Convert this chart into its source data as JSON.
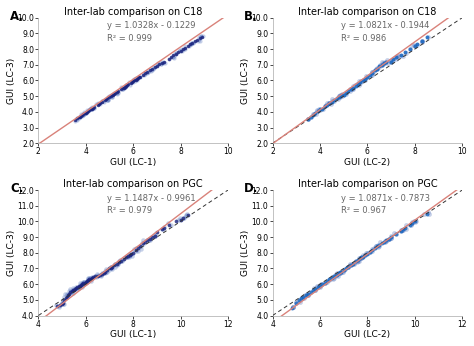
{
  "panels": [
    {
      "label": "A.",
      "title": "Inter-lab comparison on C18",
      "xlabel": "GUI (LC-1)",
      "ylabel": "GUI (LC-3)",
      "xlim": [
        2.0,
        10.0
      ],
      "ylim": [
        2.0,
        10.0
      ],
      "xticks": [
        2,
        4,
        6,
        8,
        10
      ],
      "ytick_vals": [
        2.0,
        3.0,
        4.0,
        5.0,
        6.0,
        7.0,
        8.0,
        9.0,
        10.0
      ],
      "ytick_labels": [
        "2.0",
        "3.0",
        "4.0",
        "5.0",
        "6.0",
        "7.0",
        "8.0",
        "9.0",
        "10.0"
      ],
      "equation": "y = 1.0328x - 0.1229",
      "r2": "R² = 0.999",
      "fit_slope": 1.0328,
      "fit_intercept": -0.1229,
      "line_color": "#d9827a",
      "show_diag": false,
      "scatter_x": [
        3.55,
        3.65,
        3.7,
        3.75,
        3.8,
        3.85,
        3.9,
        3.95,
        4.0,
        4.05,
        4.1,
        4.15,
        4.2,
        4.25,
        4.3,
        4.35,
        4.5,
        4.55,
        4.6,
        4.7,
        4.8,
        4.85,
        4.9,
        5.0,
        5.05,
        5.1,
        5.15,
        5.2,
        5.25,
        5.3,
        5.35,
        5.5,
        5.55,
        5.6,
        5.65,
        5.7,
        5.75,
        5.8,
        5.9,
        5.95,
        6.0,
        6.05,
        6.1,
        6.15,
        6.2,
        6.25,
        6.3,
        6.4,
        6.5,
        6.6,
        6.7,
        6.8,
        6.9,
        7.0,
        7.1,
        7.2,
        7.3,
        7.5,
        7.6,
        7.7,
        7.8,
        7.9,
        8.0,
        8.1,
        8.2,
        8.3,
        8.4,
        8.5,
        8.6,
        8.7,
        8.8,
        8.9
      ],
      "scatter_y": [
        3.5,
        3.6,
        3.65,
        3.7,
        3.75,
        3.8,
        3.85,
        3.9,
        3.95,
        4.0,
        4.05,
        4.1,
        4.15,
        4.2,
        4.25,
        4.3,
        4.45,
        4.5,
        4.55,
        4.65,
        4.75,
        4.8,
        4.85,
        4.95,
        5.0,
        5.05,
        5.1,
        5.15,
        5.2,
        5.25,
        5.3,
        5.45,
        5.5,
        5.55,
        5.6,
        5.65,
        5.7,
        5.75,
        5.85,
        5.9,
        5.95,
        6.0,
        6.05,
        6.1,
        6.15,
        6.2,
        6.25,
        6.35,
        6.45,
        6.55,
        6.65,
        6.75,
        6.85,
        6.95,
        7.05,
        7.1,
        7.2,
        7.4,
        7.5,
        7.6,
        7.7,
        7.8,
        7.9,
        8.0,
        8.1,
        8.2,
        8.3,
        8.4,
        8.5,
        8.6,
        8.7,
        8.8
      ],
      "dot_color": "#1a237e",
      "dot_alpha": 0.85,
      "dot_size": 6
    },
    {
      "label": "B.",
      "title": "Inter-lab comparison on C18",
      "xlabel": "GUI (LC-2)",
      "ylabel": "GUI (LC-3)",
      "xlim": [
        2.0,
        10.0
      ],
      "ylim": [
        2.0,
        10.0
      ],
      "xticks": [
        2,
        4,
        6,
        8,
        10
      ],
      "ytick_vals": [
        2.0,
        3.0,
        4.0,
        5.0,
        6.0,
        7.0,
        8.0,
        9.0,
        10.0
      ],
      "ytick_labels": [
        "2.0",
        "3.0",
        "4.0",
        "5.0",
        "6.0",
        "7.0",
        "8.0",
        "9.0",
        "10.0"
      ],
      "equation": "y = 1.0821x - 0.1944",
      "r2": "R² = 0.986",
      "fit_slope": 1.0821,
      "fit_intercept": -0.1944,
      "line_color": "#d9827a",
      "show_diag": true,
      "scatter_x": [
        3.5,
        3.6,
        3.7,
        3.8,
        3.9,
        4.0,
        4.1,
        4.2,
        4.3,
        4.4,
        4.5,
        4.6,
        4.7,
        4.8,
        4.9,
        5.0,
        5.1,
        5.2,
        5.3,
        5.4,
        5.5,
        5.6,
        5.7,
        5.8,
        5.9,
        6.0,
        6.1,
        6.2,
        6.3,
        6.4,
        6.5,
        6.6,
        6.7,
        6.8,
        7.0,
        7.1,
        7.2,
        7.4,
        7.6,
        7.8,
        8.0,
        8.1,
        8.3,
        8.5
      ],
      "scatter_y": [
        3.55,
        3.65,
        3.8,
        3.9,
        4.05,
        4.15,
        4.2,
        4.35,
        4.45,
        4.55,
        4.65,
        4.75,
        4.85,
        4.95,
        5.05,
        5.1,
        5.2,
        5.3,
        5.45,
        5.55,
        5.65,
        5.75,
        5.9,
        6.0,
        6.1,
        6.2,
        6.35,
        6.5,
        6.65,
        6.75,
        6.9,
        7.0,
        7.1,
        7.2,
        7.2,
        7.35,
        7.5,
        7.6,
        7.8,
        8.0,
        8.2,
        8.3,
        8.5,
        8.8
      ],
      "dot_color": "#1565c0",
      "dot_alpha": 0.85,
      "dot_size": 8
    },
    {
      "label": "C.",
      "title": "Inter-lab comparison on PGC",
      "xlabel": "GUI (LC-1)",
      "ylabel": "GUI (LC-3)",
      "xlim": [
        4.0,
        12.0
      ],
      "ylim": [
        4.0,
        12.0
      ],
      "xticks": [
        4,
        6,
        8,
        10,
        12
      ],
      "ytick_vals": [
        4.0,
        5.0,
        6.0,
        7.0,
        8.0,
        9.0,
        10.0,
        11.0,
        12.0
      ],
      "ytick_labels": [
        "4.0",
        "5.0",
        "6.0",
        "7.0",
        "8.0",
        "9.0",
        "10.0",
        "11.0",
        "12.0"
      ],
      "equation": "y = 1.1487x - 0.9961",
      "r2": "R² = 0.979",
      "fit_slope": 1.1487,
      "fit_intercept": -0.9961,
      "line_color": "#d9827a",
      "show_diag": true,
      "scatter_x": [
        4.8,
        4.9,
        5.0,
        5.05,
        5.1,
        5.15,
        5.2,
        5.25,
        5.3,
        5.35,
        5.4,
        5.45,
        5.5,
        5.55,
        5.6,
        5.65,
        5.7,
        5.75,
        5.8,
        5.85,
        5.9,
        5.95,
        6.0,
        6.05,
        6.1,
        6.15,
        6.2,
        6.25,
        6.3,
        6.4,
        6.5,
        6.6,
        6.7,
        6.75,
        6.8,
        6.9,
        7.0,
        7.05,
        7.1,
        7.2,
        7.3,
        7.4,
        7.5,
        7.6,
        7.7,
        7.8,
        7.85,
        7.9,
        8.0,
        8.1,
        8.2,
        8.3,
        8.4,
        8.5,
        8.6,
        8.7,
        8.8,
        8.9,
        9.0,
        9.2,
        9.3,
        9.5,
        9.8,
        10.0,
        10.1,
        10.3
      ],
      "scatter_y": [
        4.6,
        4.7,
        4.75,
        4.8,
        5.0,
        5.1,
        5.2,
        5.3,
        5.4,
        5.5,
        5.55,
        5.6,
        5.65,
        5.7,
        5.75,
        5.8,
        5.85,
        5.9,
        5.95,
        6.0,
        6.05,
        6.1,
        6.15,
        6.2,
        6.25,
        6.3,
        6.35,
        6.4,
        6.45,
        6.5,
        6.55,
        6.6,
        6.65,
        6.7,
        6.75,
        6.9,
        7.0,
        7.05,
        7.1,
        7.2,
        7.3,
        7.4,
        7.5,
        7.6,
        7.75,
        7.8,
        7.85,
        7.9,
        8.0,
        8.15,
        8.3,
        8.4,
        8.6,
        8.7,
        8.8,
        8.9,
        9.0,
        9.1,
        9.3,
        9.5,
        9.6,
        9.8,
        10.0,
        10.1,
        10.2,
        10.4
      ],
      "dot_color": "#1a237e",
      "dot_alpha": 0.8,
      "dot_size": 7
    },
    {
      "label": "D.",
      "title": "Inter-lab comparison on PGC",
      "xlabel": "GUI (LC-2)",
      "ylabel": "GUI (LC-3)",
      "xlim": [
        4.0,
        12.0
      ],
      "ylim": [
        4.0,
        12.0
      ],
      "xticks": [
        4,
        6,
        8,
        10,
        12
      ],
      "ytick_vals": [
        4.0,
        5.0,
        6.0,
        7.0,
        8.0,
        9.0,
        10.0,
        11.0,
        12.0
      ],
      "ytick_labels": [
        "4.0",
        "5.0",
        "6.0",
        "7.0",
        "8.0",
        "9.0",
        "10.0",
        "11.0",
        "12.0"
      ],
      "equation": "y = 1.0871x - 0.7873",
      "r2": "R² = 0.967",
      "fit_slope": 1.0871,
      "fit_intercept": -0.7873,
      "line_color": "#d9827a",
      "show_diag": true,
      "scatter_x": [
        4.8,
        5.0,
        5.1,
        5.2,
        5.3,
        5.4,
        5.5,
        5.6,
        5.7,
        5.8,
        5.9,
        6.0,
        6.1,
        6.2,
        6.3,
        6.4,
        6.5,
        6.6,
        6.7,
        6.8,
        6.85,
        6.9,
        7.0,
        7.1,
        7.2,
        7.3,
        7.4,
        7.5,
        7.6,
        7.7,
        7.75,
        7.8,
        7.9,
        8.0,
        8.1,
        8.2,
        8.3,
        8.4,
        8.5,
        8.6,
        8.7,
        8.8,
        8.9,
        9.0,
        9.2,
        9.4,
        9.5,
        9.6,
        9.8,
        9.9,
        10.0,
        10.5
      ],
      "scatter_y": [
        4.5,
        4.8,
        5.0,
        5.1,
        5.2,
        5.3,
        5.4,
        5.5,
        5.6,
        5.7,
        5.8,
        5.9,
        6.0,
        6.1,
        6.2,
        6.3,
        6.4,
        6.5,
        6.6,
        6.7,
        6.75,
        6.8,
        6.9,
        7.0,
        7.1,
        7.2,
        7.3,
        7.45,
        7.55,
        7.65,
        7.7,
        7.75,
        7.85,
        7.95,
        8.05,
        8.15,
        8.3,
        8.4,
        8.5,
        8.6,
        8.7,
        8.8,
        8.9,
        9.0,
        9.2,
        9.4,
        9.5,
        9.6,
        9.8,
        9.9,
        10.0,
        10.5
      ],
      "dot_color": "#1565c0",
      "dot_alpha": 0.8,
      "dot_size": 8
    }
  ],
  "fig_bg": "#ffffff",
  "annotation_fontsize": 6.0,
  "label_fontsize": 6.5,
  "title_fontsize": 7.0,
  "tick_fontsize": 5.5,
  "diag_color": "#333333"
}
